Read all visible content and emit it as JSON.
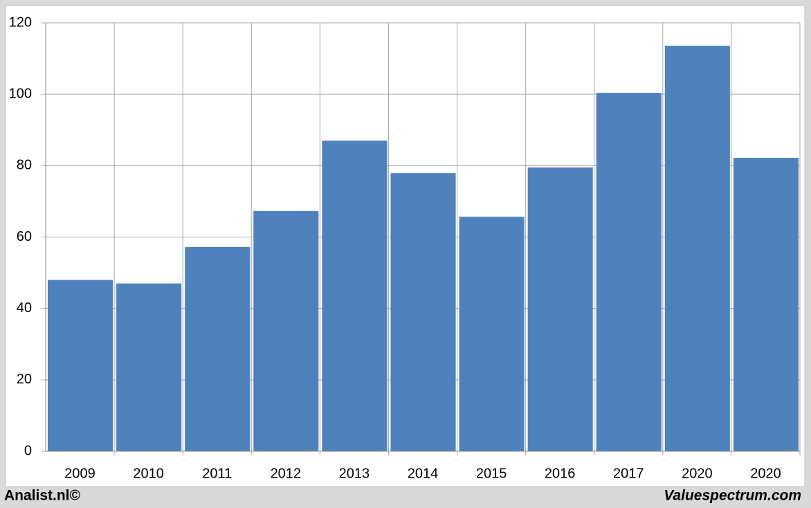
{
  "chart_data": {
    "type": "bar",
    "categories": [
      "2009",
      "2010",
      "2011",
      "2012",
      "2013",
      "2014",
      "2015",
      "2016",
      "2017",
      "2020",
      "2020"
    ],
    "values": [
      48,
      47,
      57.2,
      67.3,
      87,
      77.9,
      65.7,
      79.5,
      100.4,
      113.6,
      82.2
    ],
    "color": "#4f81bd",
    "ylim": [
      0,
      120
    ],
    "yticks": [
      0,
      20,
      40,
      60,
      80,
      100,
      120
    ],
    "grid": true,
    "source": "Analist.nl©",
    "credit": "Valuespectrum.com"
  }
}
